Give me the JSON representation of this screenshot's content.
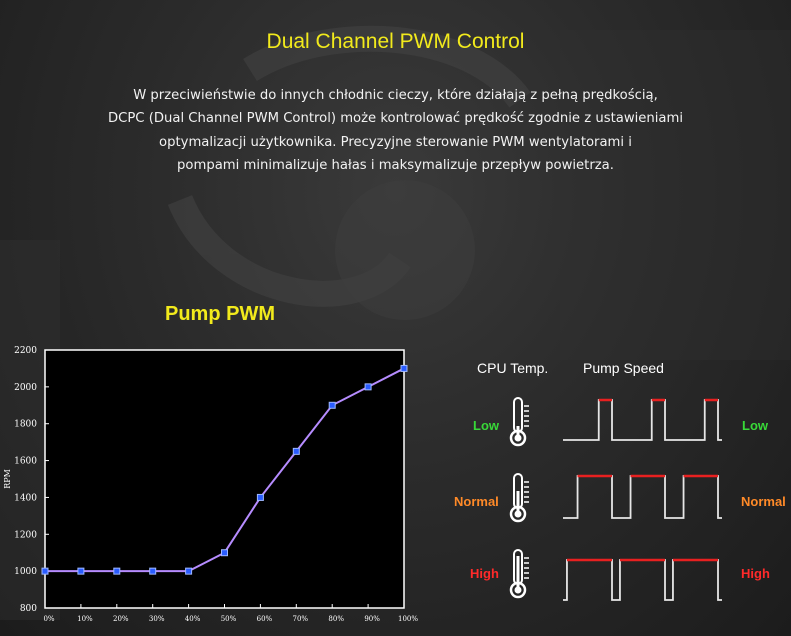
{
  "title": "Dual Channel PWM Control",
  "description": [
    "W przeciwieństwie do innych chłodnic cieczy, które działają z pełną prędkością,",
    "DCPC (Dual Channel PWM Control) może kontrolować prędkość zgodnie z ustawieniami",
    "optymalizacji użytkownika. Precyzyjne sterowanie PWM wentylatorami i",
    "pompami minimalizuje hałas i maksymalizuje przepływ powietrza."
  ],
  "pump_title": "Pump PWM",
  "colors": {
    "title_yellow": "#f2ea1c",
    "line_purple": "#b68cff",
    "marker_blue": "#2a5cff",
    "low_green": "#38d838",
    "normal_orange": "#ff8a28",
    "high_red": "#ff2a2a",
    "pulse_red": "#e82020"
  },
  "chart_data": {
    "type": "line",
    "x": [
      "0%",
      "10%",
      "20%",
      "30%",
      "40%",
      "50%",
      "60%",
      "70%",
      "80%",
      "90%",
      "100%"
    ],
    "series": [
      {
        "values": [
          1000,
          1000,
          1000,
          1000,
          1000,
          1100,
          1400,
          1650,
          1900,
          2000,
          2100
        ]
      }
    ],
    "xlabel": "",
    "ylabel": "RPM",
    "ylim": [
      800,
      2200
    ],
    "yticks": [
      800,
      1000,
      1200,
      1400,
      1600,
      1800,
      2000,
      2200
    ],
    "grid": false
  },
  "pump_diagram": {
    "headers": {
      "cpu_temp": "CPU Temp.",
      "pump_speed": "Pump Speed"
    },
    "rows": [
      {
        "level": "Low",
        "color_key": "low_green",
        "duty": 0.25,
        "thermo_icon": "thermometer-low-icon"
      },
      {
        "level": "Normal",
        "color_key": "normal_orange",
        "duty": 0.65,
        "thermo_icon": "thermometer-normal-icon"
      },
      {
        "level": "High",
        "color_key": "high_red",
        "duty": 0.85,
        "thermo_icon": "thermometer-high-icon"
      }
    ]
  }
}
